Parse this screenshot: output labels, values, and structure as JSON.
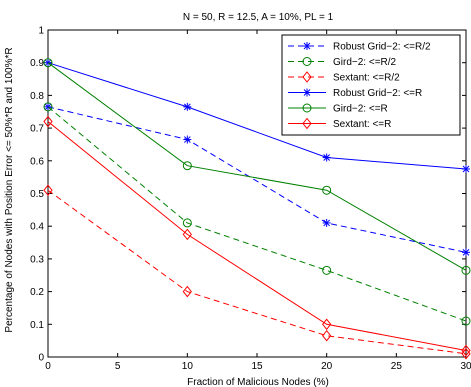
{
  "chart_data": {
    "type": "line",
    "title": "N = 50, R = 12.5, A = 10%, PL = 1",
    "xlabel": "Fraction of Malicious Nodes (%)",
    "ylabel": "Percentage of Nodes with Position Error <= 50%*R and 100%*R",
    "xlim": [
      0,
      30
    ],
    "ylim": [
      0,
      1
    ],
    "xticks": [
      0,
      5,
      10,
      15,
      20,
      25,
      30
    ],
    "yticks": [
      0,
      0.1,
      0.2,
      0.3,
      0.4,
      0.5,
      0.6,
      0.7,
      0.8,
      0.9,
      1
    ],
    "xtick_labels": [
      "0",
      "5",
      "10",
      "15",
      "20",
      "25",
      "30"
    ],
    "ytick_labels": [
      "0",
      "0.1",
      "0.2",
      "0.3",
      "0.4",
      "0.5",
      "0.6",
      "0.7",
      "0.8",
      "0.9",
      "1"
    ],
    "grid": false,
    "legend_position": "top-right",
    "x": [
      0,
      10,
      20,
      30
    ],
    "series": [
      {
        "name": "Robust Grid−2: <=R/2",
        "values": [
          0.765,
          0.665,
          0.41,
          0.32
        ],
        "color": "#0000ff",
        "dash": "dashed",
        "marker": "star"
      },
      {
        "name": "Gird−2: <=R/2",
        "values": [
          0.765,
          0.41,
          0.265,
          0.11
        ],
        "color": "#008000",
        "dash": "dashed",
        "marker": "circle"
      },
      {
        "name": "Sextant: <=R/2",
        "values": [
          0.51,
          0.2,
          0.065,
          0.01
        ],
        "color": "#ff0000",
        "dash": "dashed",
        "marker": "diamond"
      },
      {
        "name": "Robust Grid−2: <=R",
        "values": [
          0.9,
          0.765,
          0.61,
          0.575
        ],
        "color": "#0000ff",
        "dash": "solid",
        "marker": "star"
      },
      {
        "name": "Gird−2: <=R",
        "values": [
          0.9,
          0.585,
          0.51,
          0.265
        ],
        "color": "#008000",
        "dash": "solid",
        "marker": "circle"
      },
      {
        "name": "Sextant: <=R",
        "values": [
          0.72,
          0.375,
          0.1,
          0.02
        ],
        "color": "#ff0000",
        "dash": "solid",
        "marker": "diamond"
      }
    ]
  }
}
